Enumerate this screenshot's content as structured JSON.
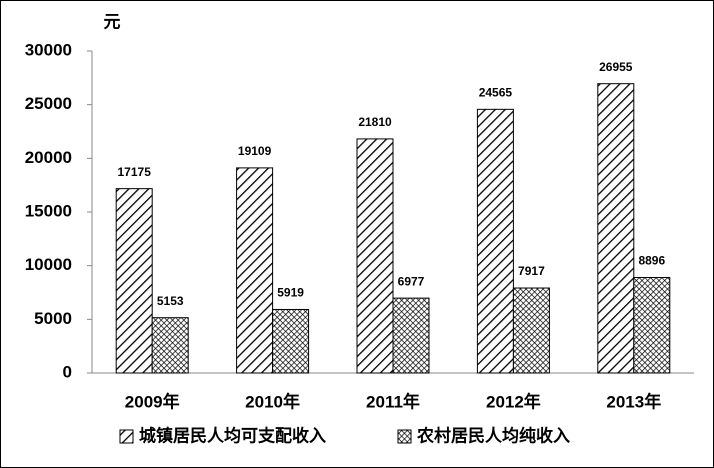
{
  "chart_data": {
    "type": "bar",
    "unit_label": "元",
    "categories": [
      "2009年",
      "2010年",
      "2011年",
      "2012年",
      "2013年"
    ],
    "series": [
      {
        "name": "城镇居民人均可支配收入",
        "color": "#000000",
        "values": [
          17175,
          19109,
          21810,
          24565,
          26955
        ]
      },
      {
        "name": "农村居民人均纯收入",
        "color": "#000000",
        "values": [
          5153,
          5919,
          6977,
          7917,
          8896
        ]
      }
    ],
    "ylim": [
      0,
      30000
    ],
    "yticks": [
      0,
      5000,
      10000,
      15000,
      20000,
      25000,
      30000
    ],
    "grid": false
  }
}
